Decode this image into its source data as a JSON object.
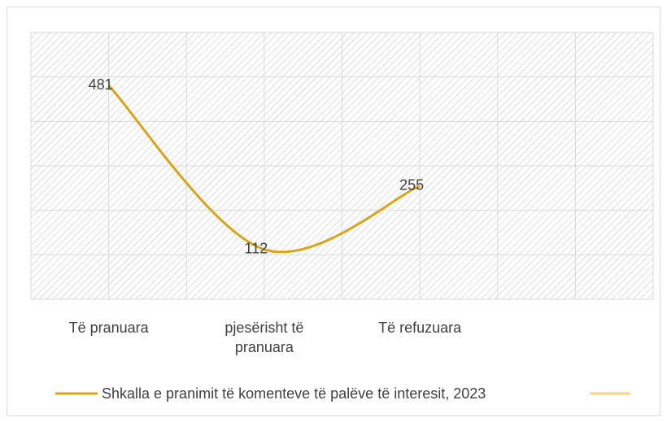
{
  "chart_data": {
    "type": "line",
    "categories": [
      "Të pranuara",
      "pjesërisht të pranuara",
      "Të refuzuara",
      null
    ],
    "series": [
      {
        "name": "Shkalla e pranimit të komenteve të palëve të interesit, 2023",
        "color": "#d9a514",
        "values": [
          481,
          112,
          255,
          null
        ]
      }
    ],
    "ylim": [
      0,
      600
    ],
    "yticks": [
      0,
      100,
      200,
      300,
      400,
      500,
      600
    ],
    "grid": true,
    "legend": "bottom"
  }
}
